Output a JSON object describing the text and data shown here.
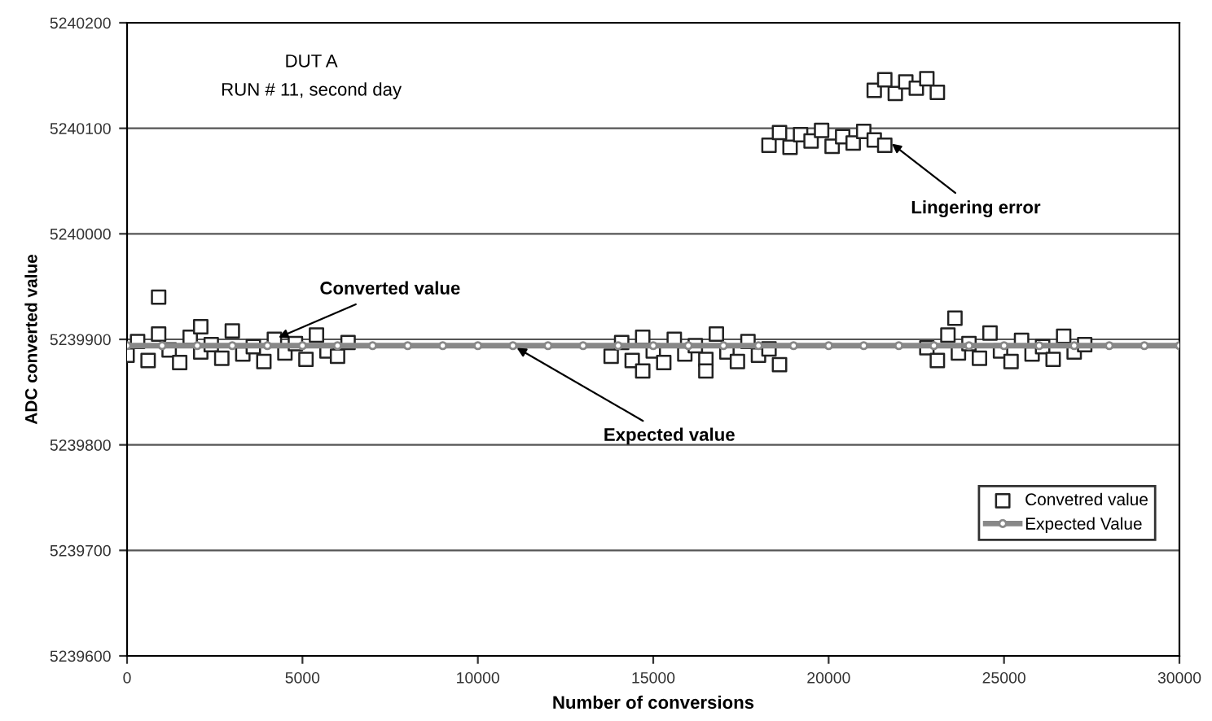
{
  "chart_data": {
    "type": "scatter",
    "xlabel": "Number of conversions",
    "ylabel": "ADC converted value",
    "xlim": [
      0,
      30000
    ],
    "xticks": [
      0,
      5000,
      10000,
      15000,
      20000,
      25000,
      30000
    ],
    "ylim": [
      5239600,
      5240200
    ],
    "yticks": [
      5239600,
      5239700,
      5239800,
      5239900,
      5240000,
      5240100,
      5240200
    ],
    "grid": "y",
    "legend": "bottom right",
    "series": [
      {
        "name": "Convetred value",
        "color": "#222222",
        "marker": "square",
        "x": [
          0,
          300,
          600,
          900,
          1200,
          1500,
          1800,
          2100,
          2400,
          2700,
          3000,
          3300,
          3600,
          3900,
          4200,
          4500,
          4800,
          5100,
          5400,
          5700,
          6000,
          6300,
          900,
          2100,
          13800,
          14100,
          14400,
          14700,
          15000,
          15300,
          15600,
          15900,
          16200,
          16500,
          16800,
          17100,
          17400,
          17700,
          18000,
          18300,
          18600,
          14700,
          16500,
          22800,
          23100,
          23400,
          23700,
          24000,
          24300,
          24600,
          24900,
          25200,
          25500,
          25800,
          26100,
          26400,
          26700,
          27000,
          27300,
          23600,
          18300,
          18600,
          18900,
          19200,
          19500,
          19800,
          20100,
          20400,
          20700,
          21000,
          21300,
          21600,
          21300,
          21600,
          21900,
          22200,
          22500,
          22800,
          23100
        ],
        "values": [
          5239885,
          5239898,
          5239880,
          5239905,
          5239890,
          5239878,
          5239902,
          5239888,
          5239895,
          5239882,
          5239908,
          5239886,
          5239893,
          5239879,
          5239900,
          5239887,
          5239896,
          5239881,
          5239904,
          5239889,
          5239884,
          5239897,
          5239940,
          5239912,
          5239884,
          5239897,
          5239880,
          5239902,
          5239889,
          5239878,
          5239900,
          5239886,
          5239894,
          5239881,
          5239905,
          5239888,
          5239879,
          5239898,
          5239885,
          5239891,
          5239876,
          5239870,
          5239870,
          5239892,
          5239880,
          5239904,
          5239887,
          5239896,
          5239882,
          5239906,
          5239889,
          5239879,
          5239899,
          5239886,
          5239893,
          5239881,
          5239903,
          5239888,
          5239895,
          5239920,
          5240084,
          5240096,
          5240082,
          5240094,
          5240088,
          5240098,
          5240083,
          5240092,
          5240086,
          5240097,
          5240089,
          5240084,
          5240136,
          5240146,
          5240133,
          5240144,
          5240138,
          5240147,
          5240134
        ]
      },
      {
        "name": "Expected Value",
        "color": "#888888",
        "type": "line",
        "marker": "circle",
        "x": [
          0,
          1000,
          2000,
          3000,
          4000,
          5000,
          6000,
          7000,
          8000,
          9000,
          10000,
          11000,
          12000,
          13000,
          14000,
          15000,
          16000,
          17000,
          18000,
          19000,
          20000,
          21000,
          22000,
          23000,
          24000,
          25000,
          26000,
          27000,
          28000,
          29000,
          30000
        ],
        "values": [
          5239894,
          5239894,
          5239894,
          5239894,
          5239894,
          5239894,
          5239894,
          5239894,
          5239894,
          5239894,
          5239894,
          5239894,
          5239894,
          5239894,
          5239894,
          5239894,
          5239894,
          5239894,
          5239894,
          5239894,
          5239894,
          5239894,
          5239894,
          5239894,
          5239894,
          5239894,
          5239894,
          5239894,
          5239894,
          5239894,
          5239894
        ]
      }
    ],
    "annotations": [
      "DUT A",
      "RUN # 11, second day",
      {
        "text": "Converted value",
        "x": 4200,
        "y": 5239900
      },
      {
        "text": "Expected value",
        "x": 11000,
        "y": 5239894
      },
      {
        "text": "Lingering error",
        "x": 21700,
        "y": 5240088
      }
    ]
  }
}
